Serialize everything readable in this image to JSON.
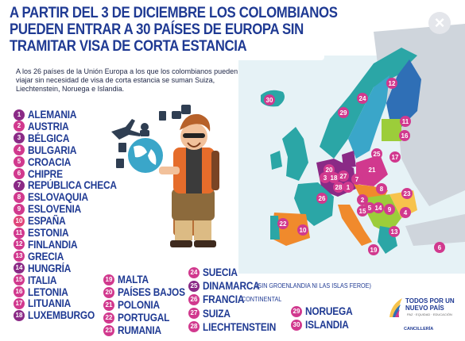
{
  "header": {
    "line1": "A PARTIR DEL 3 DE DICIEMBRE LOS COLOMBIANOS",
    "line2": "PUEDEN ENTRAR A 30 PAÍSES DE EUROPA SIN",
    "line3": "TRAMITAR VISA DE CORTA ESTANCIA"
  },
  "close_label": "×",
  "intro": "A los 26 países de la Unión Europa a los que los colombianos pueden viajar sin necesidad de visa de corta estancia se suman Suiza, Liechtenstein, Noruega e Islandia.",
  "countries": [
    {
      "n": "1",
      "name": "ALEMANIA",
      "color": "#8a2a86"
    },
    {
      "n": "2",
      "name": "AUSTRIA",
      "color": "#d1398e"
    },
    {
      "n": "3",
      "name": "BÉLGICA",
      "color": "#8a2a86"
    },
    {
      "n": "4",
      "name": "BULGARIA",
      "color": "#d1398e"
    },
    {
      "n": "5",
      "name": "CROACIA",
      "color": "#d1398e"
    },
    {
      "n": "6",
      "name": "CHIPRE",
      "color": "#d1398e"
    },
    {
      "n": "7",
      "name": "REPÚBLICA CHECA",
      "color": "#8a2a86"
    },
    {
      "n": "8",
      "name": "ESLOVAQUIA",
      "color": "#d1398e"
    },
    {
      "n": "9",
      "name": "ESLOVENIA",
      "color": "#d1398e"
    },
    {
      "n": "10",
      "name": "ESPAÑA",
      "color": "#e0457a"
    },
    {
      "n": "11",
      "name": "ESTONIA",
      "color": "#d1398e"
    },
    {
      "n": "12",
      "name": "FINLANDIA",
      "color": "#d1398e"
    },
    {
      "n": "13",
      "name": "GRECIA",
      "color": "#d1398e"
    },
    {
      "n": "14",
      "name": "HUNGRÍA",
      "color": "#8a2a86"
    },
    {
      "n": "15",
      "name": "ITALIA",
      "color": "#d1398e"
    },
    {
      "n": "16",
      "name": "LETONIA",
      "color": "#d1398e"
    },
    {
      "n": "17",
      "name": "LITUANIA",
      "color": "#d1398e"
    },
    {
      "n": "18",
      "name": "LUXEMBURGO",
      "color": "#8a2a86"
    },
    {
      "n": "19",
      "name": "MALTA",
      "color": "#d1398e"
    },
    {
      "n": "20",
      "name": "PAÍSES BAJOS",
      "color": "#d1398e"
    },
    {
      "n": "21",
      "name": "POLONIA",
      "color": "#d1398e"
    },
    {
      "n": "22",
      "name": "PORTUGAL",
      "color": "#d1398e"
    },
    {
      "n": "23",
      "name": "RUMANIA",
      "color": "#d1398e"
    },
    {
      "n": "24",
      "name": "SUECIA",
      "color": "#d1398e"
    },
    {
      "n": "25",
      "name": "DINAMARCA",
      "color": "#8a2a86",
      "note": "(SIN GROENLANDIA NI LAS ISLAS FEROE)"
    },
    {
      "n": "26",
      "name": "FRANCIA",
      "color": "#d1398e",
      "note": "CONTINENTAL"
    },
    {
      "n": "27",
      "name": "SUIZA",
      "color": "#d1398e"
    },
    {
      "n": "28",
      "name": "LIECHTENSTEIN",
      "color": "#d1398e"
    },
    {
      "n": "29",
      "name": "NORUEGA",
      "color": "#d1398e"
    },
    {
      "n": "30",
      "name": "ISLANDIA",
      "color": "#d1398e"
    }
  ],
  "map_numbers": [
    "30",
    "24",
    "12",
    "29",
    "11",
    "16",
    "25",
    "17",
    "20",
    "21",
    "3",
    "27",
    "7",
    "28",
    "18",
    "1",
    "8",
    "26",
    "2",
    "5",
    "14",
    "9",
    "23",
    "4",
    "15",
    "10",
    "22",
    "13",
    "19",
    "6"
  ],
  "logo": {
    "title": "TODOS POR UN NUEVO PAÍS",
    "subtitle": "PAZ · EQUIDAD · EDUCACIÓN",
    "ministry": "CANCILLERÍA"
  },
  "colors": {
    "title_blue": "#1f3a93",
    "map_teal": "#2ba6a6",
    "map_blue": "#2f6fb6",
    "map_purple": "#8a2a86",
    "map_magenta": "#d1398e",
    "map_orange": "#f08a2c",
    "map_green": "#9ccd3a",
    "sea": "#e6f2f6"
  }
}
